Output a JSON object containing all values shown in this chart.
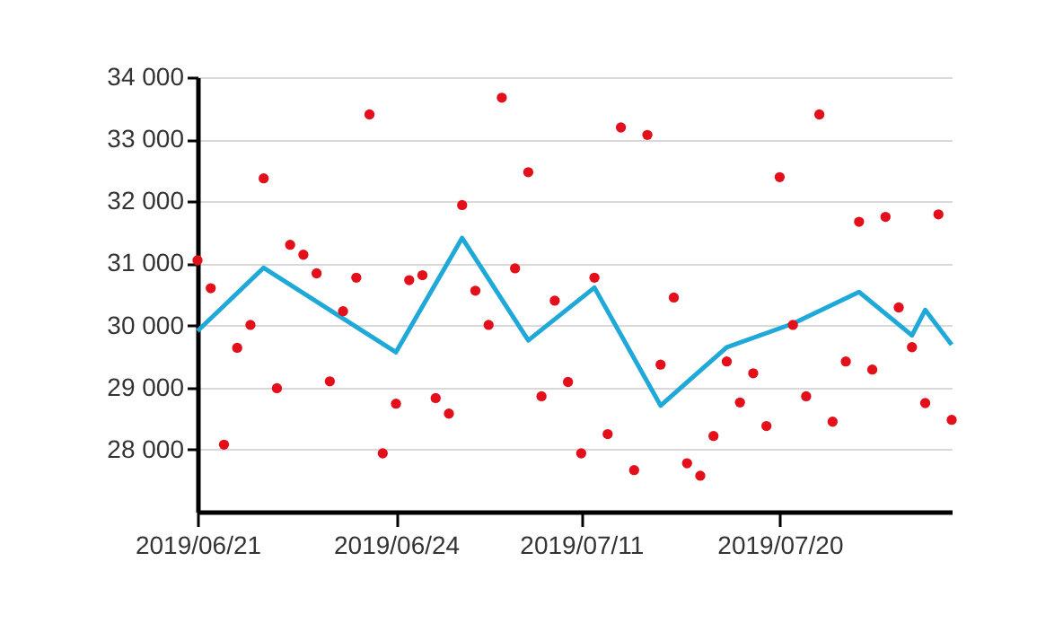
{
  "chart_data": {
    "type": "scatter",
    "categories": [
      "2019/06/21",
      null,
      null,
      null,
      null,
      null,
      null,
      null,
      null,
      null,
      null,
      null,
      null,
      null,
      null,
      "2019/06/24",
      null,
      null,
      null,
      null,
      null,
      null,
      null,
      null,
      null,
      null,
      null,
      null,
      null,
      "2019/07/11",
      null,
      null,
      null,
      null,
      null,
      null,
      null,
      null,
      null,
      null,
      null,
      null,
      null,
      null,
      "2019/07/20",
      null,
      null,
      null,
      null,
      null,
      null,
      null,
      null,
      null,
      null,
      null,
      null,
      null
    ],
    "series": [
      {
        "marker": "circle",
        "color": "#e3101c",
        "values": [
          31050,
          30600,
          28080,
          29640,
          30010,
          32370,
          28990,
          31300,
          31140,
          30840,
          29100,
          30230,
          30770,
          33400,
          27940,
          28740,
          30730,
          30810,
          28830,
          28580,
          31940,
          30560,
          30010,
          33670,
          30920,
          32470,
          28860,
          30400,
          29090,
          27940,
          30770,
          28250,
          33190,
          27670,
          33070,
          29370,
          30450,
          27780,
          27580,
          28220,
          29420,
          28760,
          29230,
          28380,
          32390,
          30010,
          28860,
          33400,
          28450,
          29420,
          31670,
          29290,
          31750,
          30290,
          29650,
          28750,
          31790,
          28480
        ]
      },
      {
        "type": "line",
        "color": "#1fa9d8",
        "values": [
          29910,
          null,
          null,
          null,
          null,
          30930,
          null,
          null,
          null,
          null,
          null,
          null,
          null,
          null,
          null,
          29570,
          null,
          null,
          null,
          null,
          31410,
          null,
          null,
          null,
          null,
          29760,
          null,
          null,
          null,
          null,
          30610,
          null,
          null,
          null,
          null,
          28710,
          null,
          null,
          null,
          null,
          29650,
          null,
          null,
          null,
          null,
          30030,
          null,
          null,
          null,
          null,
          30540,
          null,
          null,
          null,
          29840,
          30250,
          null,
          29690
        ]
      }
    ],
    "ylim": [
      27000,
      34000
    ],
    "yticks": [
      {
        "value": 28000,
        "label": "28 000"
      },
      {
        "value": 29000,
        "label": "29 000"
      },
      {
        "value": 30000,
        "label": "30 000"
      },
      {
        "value": 31000,
        "label": "31 000"
      },
      {
        "value": 32000,
        "label": "32 000"
      },
      {
        "value": 33000,
        "label": "33 000"
      },
      {
        "value": 34000,
        "label": "34 000"
      }
    ],
    "grid": "y",
    "line_style": "solid"
  }
}
